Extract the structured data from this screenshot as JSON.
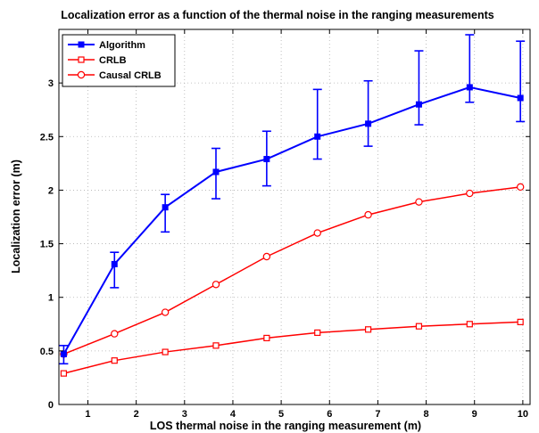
{
  "chart_data": {
    "type": "line",
    "title": "Localization error as a function of the thermal noise in the ranging measurements",
    "xlabel": "LOS thermal noise in the ranging measurement (m)",
    "ylabel": "Localization error (m)",
    "xlim": [
      0.4,
      10.15
    ],
    "ylim": [
      0,
      3.5
    ],
    "xticks": [
      1,
      2,
      3,
      4,
      5,
      6,
      7,
      8,
      9,
      10
    ],
    "yticks": [
      0,
      0.5,
      1,
      1.5,
      2,
      2.5,
      3
    ],
    "grid": true,
    "legend_position": "top-left",
    "x": [
      0.5,
      1.55,
      2.6,
      3.65,
      4.7,
      5.75,
      6.8,
      7.85,
      8.9,
      9.95
    ],
    "series": [
      {
        "name": "Algorithm",
        "color": "#0000ff",
        "marker": "square-filled",
        "values": [
          0.47,
          1.31,
          1.84,
          2.17,
          2.29,
          2.5,
          2.62,
          2.8,
          2.96,
          2.86
        ],
        "error_low": [
          0.38,
          1.09,
          1.61,
          1.92,
          2.04,
          2.29,
          2.41,
          2.61,
          2.82,
          2.64
        ],
        "error_high": [
          0.55,
          1.42,
          1.96,
          2.39,
          2.55,
          2.94,
          3.02,
          3.3,
          3.45,
          3.39
        ]
      },
      {
        "name": "CRLB",
        "color": "#ff0000",
        "marker": "square-open",
        "values": [
          0.29,
          0.41,
          0.49,
          0.55,
          0.62,
          0.67,
          0.7,
          0.73,
          0.75,
          0.77
        ]
      },
      {
        "name": "Causal CRLB",
        "color": "#ff0000",
        "marker": "circle-open",
        "values": [
          0.47,
          0.66,
          0.86,
          1.12,
          1.38,
          1.6,
          1.77,
          1.89,
          1.97,
          2.03
        ]
      }
    ]
  }
}
